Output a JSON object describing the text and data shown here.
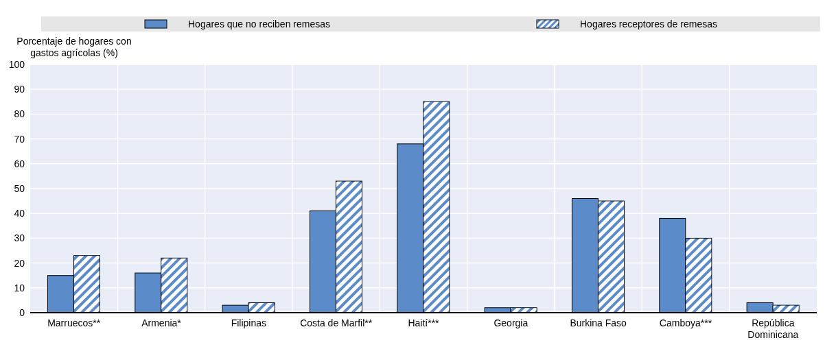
{
  "chart_data": {
    "type": "bar",
    "ylabel": "Porcentaje de hogares con gastos agrícolas (%)",
    "categories": [
      "Marruecos**",
      "Armenia*",
      "Filipinas",
      "Costa de Marfil**",
      "Haití***",
      "Georgia",
      "Burkina Faso",
      "Camboya***",
      "República Dominicana"
    ],
    "series": [
      {
        "name": "Hogares que no reciben remesas",
        "color": "#5b8bc9",
        "values": [
          15,
          16,
          3,
          41,
          68,
          2,
          46,
          38,
          4
        ]
      },
      {
        "name": "Hogares receptores de remesas",
        "color": "#5b8bc9",
        "values": [
          23,
          22,
          4,
          53,
          85,
          2,
          45,
          30,
          3
        ]
      }
    ],
    "ylim": [
      0,
      100
    ],
    "yticks": [
      0,
      10,
      20,
      30,
      40,
      50,
      60,
      70,
      80,
      90,
      100
    ],
    "grid": true,
    "legend": "top"
  }
}
